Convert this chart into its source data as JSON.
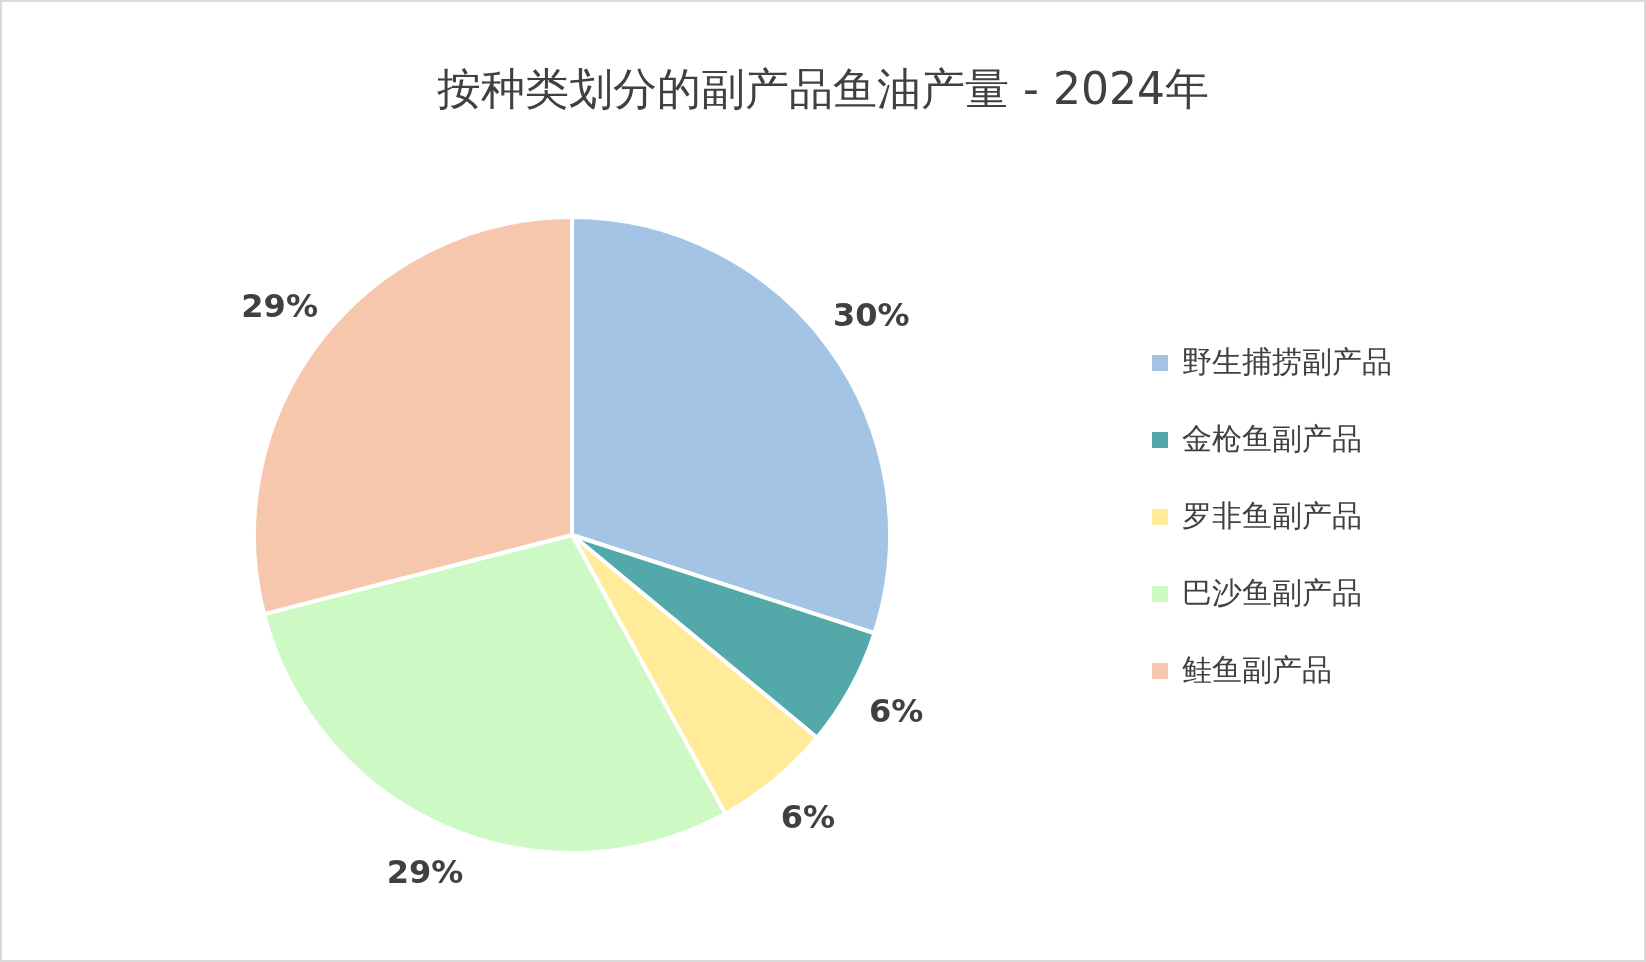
{
  "chart_data": {
    "type": "pie",
    "title": "按种类划分的副产品鱼油产量 - 2024年",
    "categories": [
      "野生捕捞副产品",
      "金枪鱼副产品",
      "罗非鱼副产品",
      "巴沙鱼副产品",
      "鲑鱼副产品"
    ],
    "values": [
      30,
      6,
      6,
      29,
      29
    ],
    "colors": [
      "#a4c4e6",
      "#53a9a9",
      "#ffeb99",
      "#ccf9c4",
      "#f7c7ad"
    ],
    "value_labels": [
      "30%",
      "6%",
      "6%",
      "29%",
      "29%"
    ],
    "legend": "right"
  }
}
